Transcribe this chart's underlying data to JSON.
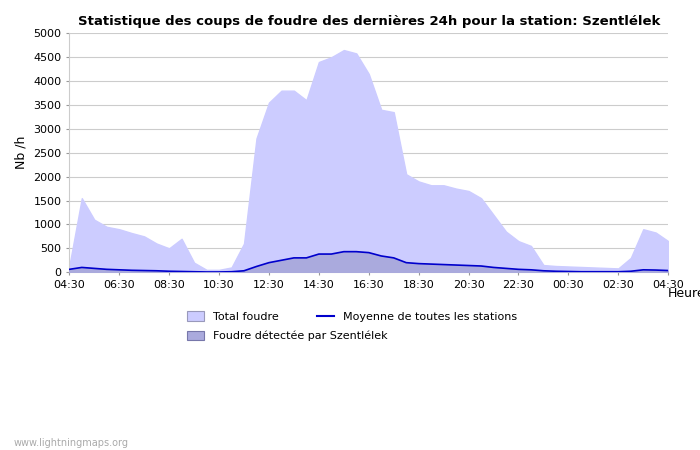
{
  "title": "Statistique des coups de foudre des dernières 24h pour la station: Szentlélek",
  "ylabel": "Nb /h",
  "xlabel": "Heure",
  "watermark": "www.lightningmaps.org",
  "background_color": "#ffffff",
  "plot_bg_color": "#ffffff",
  "grid_color": "#cccccc",
  "ylim": [
    0,
    5000
  ],
  "yticks": [
    0,
    500,
    1000,
    1500,
    2000,
    2500,
    3000,
    3500,
    4000,
    4500,
    5000
  ],
  "x_labels": [
    "04:30",
    "06:30",
    "08:30",
    "10:30",
    "12:30",
    "14:30",
    "16:30",
    "18:30",
    "20:30",
    "22:30",
    "00:30",
    "02:30",
    "04:30"
  ],
  "legend_total_label": "Total foudre",
  "legend_avg_label": "Moyenne de toutes les stations",
  "legend_station_label": "Foudre détectée par Szentlélek",
  "total_foudre_color": "#ccccff",
  "station_color": "#aaaadd",
  "avg_line_color": "#0000cc",
  "time_points": [
    0,
    1,
    2,
    3,
    4,
    5,
    6,
    7,
    8,
    9,
    10,
    11,
    12,
    13,
    14,
    15,
    16,
    17,
    18,
    19,
    20,
    21,
    22,
    23,
    24,
    25,
    26,
    27,
    28,
    29,
    30,
    31,
    32,
    33,
    34,
    35,
    36,
    37,
    38,
    39,
    40,
    41,
    42,
    43,
    44,
    45,
    46,
    47,
    48
  ],
  "total_foudre": [
    130,
    1550,
    1100,
    950,
    900,
    820,
    750,
    600,
    500,
    700,
    200,
    50,
    50,
    100,
    600,
    2800,
    3550,
    3800,
    3800,
    3600,
    4400,
    4500,
    4650,
    4580,
    4150,
    3400,
    3350,
    2050,
    1900,
    1820,
    1820,
    1750,
    1700,
    1550,
    1200,
    850,
    650,
    550,
    150,
    130,
    120,
    110,
    100,
    90,
    80,
    300,
    900,
    830,
    650
  ],
  "station_foudre": [
    60,
    100,
    80,
    60,
    50,
    40,
    35,
    30,
    20,
    15,
    10,
    5,
    5,
    10,
    30,
    120,
    200,
    250,
    300,
    300,
    380,
    380,
    430,
    430,
    410,
    340,
    300,
    200,
    180,
    170,
    160,
    150,
    140,
    130,
    100,
    80,
    60,
    50,
    30,
    20,
    15,
    10,
    10,
    10,
    10,
    20,
    50,
    45,
    35
  ],
  "avg_line": [
    60,
    100,
    80,
    60,
    50,
    40,
    35,
    30,
    20,
    15,
    10,
    5,
    5,
    10,
    30,
    120,
    200,
    250,
    300,
    300,
    380,
    380,
    430,
    430,
    410,
    340,
    300,
    200,
    180,
    170,
    160,
    150,
    140,
    130,
    100,
    80,
    60,
    50,
    30,
    20,
    15,
    10,
    10,
    10,
    10,
    20,
    50,
    45,
    35
  ]
}
